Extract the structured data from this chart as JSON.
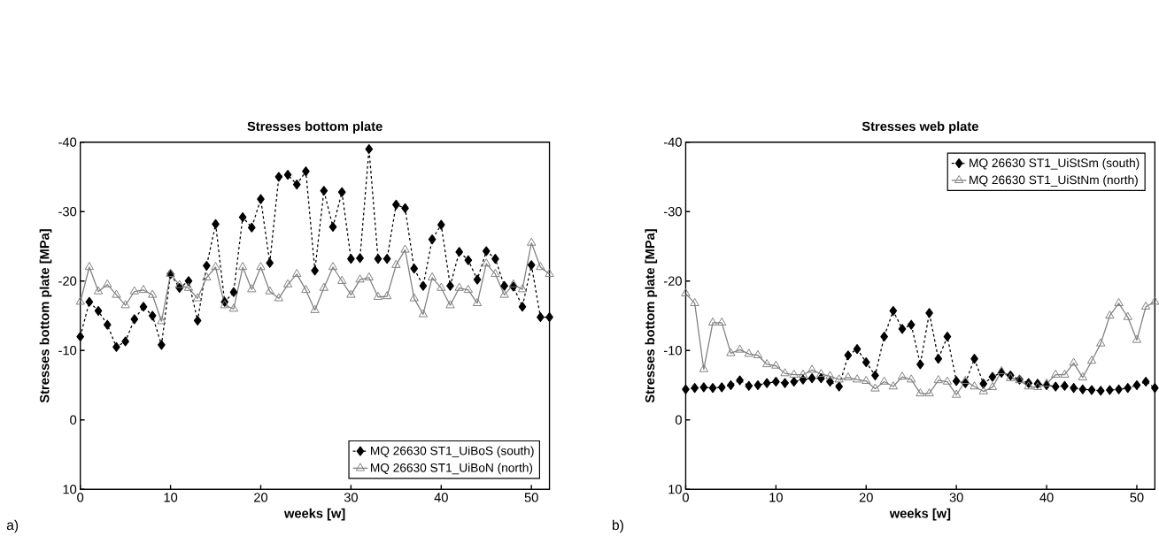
{
  "chart_data": [
    {
      "type": "line",
      "title": "Stresses bottom plate",
      "xlabel": "weeks [w]",
      "ylabel": "Stresses bottom plate [MPa]",
      "annotations": [
        "a)"
      ],
      "xlim": [
        0,
        52
      ],
      "xticks": [
        0,
        10,
        20,
        30,
        40,
        50
      ],
      "ylim": [
        10,
        -40
      ],
      "yticks": [
        -40,
        -30,
        -20,
        -10,
        0,
        10
      ],
      "legend": "bottom right",
      "x": [
        0,
        1,
        2,
        3,
        4,
        5,
        6,
        7,
        8,
        9,
        10,
        11,
        12,
        13,
        14,
        15,
        16,
        17,
        18,
        19,
        20,
        21,
        22,
        23,
        24,
        25,
        26,
        27,
        28,
        29,
        30,
        31,
        32,
        33,
        34,
        35,
        36,
        37,
        38,
        39,
        40,
        41,
        42,
        43,
        44,
        45,
        46,
        47,
        48,
        49,
        50,
        51,
        52
      ],
      "series": [
        {
          "name": "MQ 26630 ST1_UiBoS (south)",
          "color": "#000000",
          "marker": "diamond",
          "line_style": "dashed",
          "values": [
            -12,
            -17,
            -15.7,
            -13.7,
            -10.5,
            -11.3,
            -14.5,
            -16.3,
            -15,
            -10.8,
            -21,
            -19,
            -20,
            -14.3,
            -22.2,
            -28.2,
            -17,
            -18.4,
            -29.2,
            -27.7,
            -31.8,
            -22.6,
            -35,
            -35.3,
            -33.9,
            -35.8,
            -21.5,
            -33,
            -27.8,
            -32.8,
            -23.2,
            -23.3,
            -39,
            -23.2,
            -23.2,
            -31,
            -30.5,
            -21.8,
            -19.3,
            -26,
            -28.1,
            -19.3,
            -24.2,
            -23,
            -20.2,
            -24.3,
            -23.2,
            -19.3,
            -19.2,
            -16.3,
            -22.3,
            -14.8,
            -14.8
          ]
        },
        {
          "name": "MQ 26630 ST1_UiBoN (north)",
          "color": "#808080",
          "marker": "triangle",
          "line_style": "solid",
          "values": [
            -17,
            -22,
            -18.5,
            -19.5,
            -18,
            -16.5,
            -18.5,
            -18.7,
            -18,
            -14.2,
            -21,
            -19.4,
            -19,
            -17.5,
            -20.5,
            -22,
            -16.5,
            -16,
            -22,
            -18.8,
            -22,
            -18.5,
            -17.5,
            -19.5,
            -21,
            -18.7,
            -15.8,
            -19,
            -22,
            -20,
            -18,
            -20.2,
            -20.5,
            -17.7,
            -17.8,
            -22.3,
            -24.5,
            -17.5,
            -15.2,
            -20.5,
            -19,
            -16.5,
            -19,
            -18.7,
            -16.8,
            -22.5,
            -21,
            -18,
            -19.5,
            -18.8,
            -25.5,
            -22,
            -21
          ]
        }
      ]
    },
    {
      "type": "line",
      "title": "Stresses web plate",
      "xlabel": "weeks [w]",
      "ylabel": "Stresses bottom plate [MPa]",
      "annotations": [
        "b)"
      ],
      "xlim": [
        0,
        52
      ],
      "xticks": [
        0,
        10,
        20,
        30,
        40,
        50
      ],
      "ylim": [
        10,
        -40
      ],
      "yticks": [
        -40,
        -30,
        -20,
        -10,
        0,
        10
      ],
      "legend": "top right",
      "x": [
        0,
        1,
        2,
        3,
        4,
        5,
        6,
        7,
        8,
        9,
        10,
        11,
        12,
        13,
        14,
        15,
        16,
        17,
        18,
        19,
        20,
        21,
        22,
        23,
        24,
        25,
        26,
        27,
        28,
        29,
        30,
        31,
        32,
        33,
        34,
        35,
        36,
        37,
        38,
        39,
        40,
        41,
        42,
        43,
        44,
        45,
        46,
        47,
        48,
        49,
        50,
        51,
        52
      ],
      "series": [
        {
          "name": "MQ 26630 ST1_UiStSm (south)",
          "color": "#000000",
          "marker": "diamond",
          "line_style": "dashed",
          "values": [
            -4.4,
            -4.6,
            -4.7,
            -4.6,
            -4.7,
            -5,
            -5.7,
            -4.9,
            -5,
            -5.3,
            -5.5,
            -5.3,
            -5.5,
            -5.8,
            -6,
            -6,
            -5.5,
            -4.8,
            -9.3,
            -10.2,
            -8.3,
            -6.4,
            -12,
            -15.7,
            -13.1,
            -13.7,
            -8,
            -15.4,
            -8.8,
            -12,
            -5.6,
            -5.3,
            -8.8,
            -5.2,
            -6.2,
            -6.8,
            -6.4,
            -5.8,
            -5.3,
            -5.2,
            -5,
            -4.8,
            -4.9,
            -4.6,
            -4.4,
            -4.3,
            -4.2,
            -4.3,
            -4.4,
            -4.6,
            -5,
            -5.5,
            -4.6
          ]
        },
        {
          "name": "MQ 26630 ST1_UiStNm (north)",
          "color": "#808080",
          "marker": "triangle",
          "line_style": "solid",
          "values": [
            -18.2,
            -16.8,
            -7.3,
            -14,
            -14,
            -9.6,
            -10.1,
            -9.5,
            -9.3,
            -8,
            -7.8,
            -6.7,
            -6.5,
            -6.5,
            -7.2,
            -6.6,
            -6.3,
            -5.8,
            -6.1,
            -5.8,
            -5.6,
            -4.5,
            -5.5,
            -4.8,
            -6.2,
            -5.8,
            -3.8,
            -3.8,
            -5.7,
            -5.5,
            -3.6,
            -5.6,
            -4.8,
            -4.1,
            -4.7,
            -7,
            -6,
            -5.7,
            -4.8,
            -4.7,
            -5.2,
            -6.5,
            -6.5,
            -8.2,
            -6.1,
            -8.5,
            -11,
            -15,
            -16.8,
            -14.8,
            -11.5,
            -16.3,
            -17
          ]
        }
      ]
    }
  ]
}
